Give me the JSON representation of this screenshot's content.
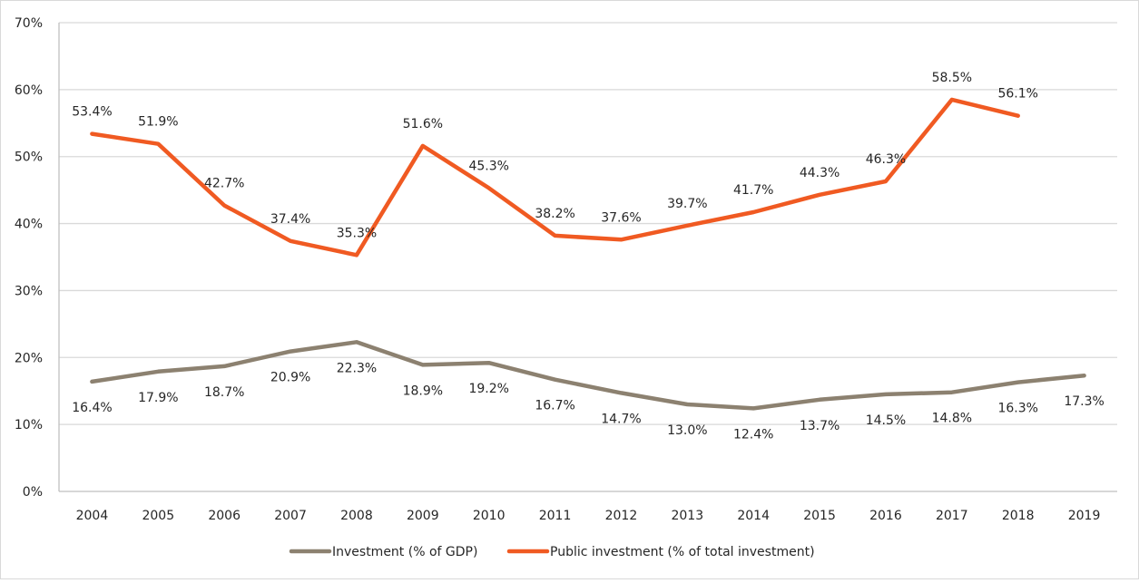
{
  "chart_data": {
    "type": "line",
    "title": "",
    "xlabel": "",
    "ylabel": "",
    "categories": [
      "2004",
      "2005",
      "2006",
      "2007",
      "2008",
      "2009",
      "2010",
      "2011",
      "2012",
      "2013",
      "2014",
      "2015",
      "2016",
      "2017",
      "2018",
      "2019"
    ],
    "ylim": [
      0,
      70
    ],
    "yticks": [
      0,
      10,
      20,
      30,
      40,
      50,
      60,
      70
    ],
    "ytick_labels": [
      "0%",
      "10%",
      "20%",
      "30%",
      "40%",
      "50%",
      "60%",
      "70%"
    ],
    "grid": true,
    "legend_position": "bottom",
    "series": [
      {
        "name": "Investment (% of GDP)",
        "color": "#8c8170",
        "label_position": "below",
        "values": [
          16.4,
          17.9,
          18.7,
          20.9,
          22.3,
          18.9,
          19.2,
          16.7,
          14.7,
          13.0,
          12.4,
          13.7,
          14.5,
          14.8,
          16.3,
          17.3
        ],
        "labels": [
          "16.4%",
          "17.9%",
          "18.7%",
          "20.9%",
          "22.3%",
          "18.9%",
          "19.2%",
          "16.7%",
          "14.7%",
          "13.0%",
          "12.4%",
          "13.7%",
          "14.5%",
          "14.8%",
          "16.3%",
          "17.3%"
        ]
      },
      {
        "name": "Public investment (% of total investment)",
        "color": "#f05a22",
        "label_position": "above",
        "values": [
          53.4,
          51.9,
          42.7,
          37.4,
          35.3,
          51.6,
          45.3,
          38.2,
          37.6,
          39.7,
          41.7,
          44.3,
          46.3,
          58.5,
          56.1,
          null
        ],
        "labels": [
          "53.4%",
          "51.9%",
          "42.7%",
          "37.4%",
          "35.3%",
          "51.6%",
          "45.3%",
          "38.2%",
          "37.6%",
          "39.7%",
          "41.7%",
          "44.3%",
          "46.3%",
          "58.5%",
          "56.1%",
          null
        ]
      }
    ]
  }
}
